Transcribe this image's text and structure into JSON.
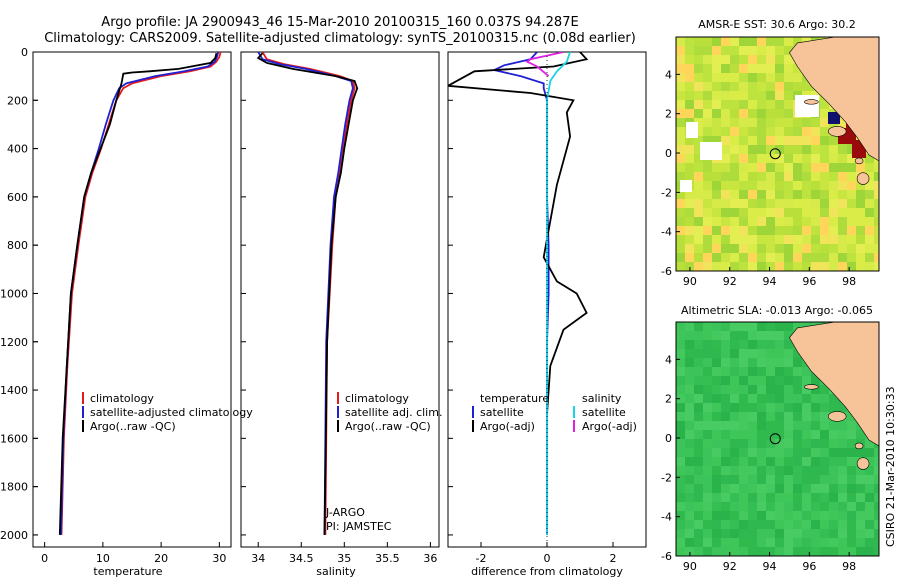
{
  "header": {
    "line1": "Argo profile: JA 2900943_46 15-Mar-2010 20100315_160 0.037S 94.287E",
    "line2": "Climatology: CARS2009. Satellite-adjusted climatology: synTS_20100315.nc (0.08d earlier)"
  },
  "colors": {
    "climatology": "#e41a1c",
    "satellite": "#1f1fd6",
    "argo": "#000000",
    "sal_satellite": "#19d3e6",
    "sal_argo": "#e21fe0",
    "sst_high": "#9b0a0a",
    "land": "#f7c49a"
  },
  "chart_data": [
    {
      "type": "line",
      "name": "temperature",
      "xlabel": "temperature",
      "xticks": [
        "0",
        "10",
        "20",
        "30"
      ],
      "xlim": [
        -2,
        32
      ],
      "ylim": [
        0,
        2050
      ],
      "yticks": [
        "0",
        "200",
        "400",
        "600",
        "800",
        "1000",
        "1200",
        "1400",
        "1600",
        "1800",
        "2000"
      ],
      "legend": [
        "climatology",
        "satellite-adjusted climatology",
        "Argo(..raw -QC)"
      ],
      "series": [
        {
          "name": "climatology",
          "color": "#e41a1c",
          "x": [
            30.2,
            30.0,
            29.5,
            28.5,
            25,
            20,
            15,
            13.5,
            12.3,
            11.0,
            9.7,
            8.2,
            7.0,
            5.8,
            4.7,
            3.9,
            3.3,
            2.9
          ],
          "y": [
            0,
            20,
            40,
            60,
            80,
            100,
            130,
            150,
            200,
            300,
            400,
            500,
            600,
            800,
            1000,
            1300,
            1600,
            2000
          ]
        },
        {
          "name": "satellite-adjusted climatology",
          "color": "#1f1fd6",
          "x": [
            29.8,
            29.6,
            29.2,
            28,
            24,
            19,
            14,
            12.8,
            11.8,
            10.5,
            9.3,
            8.0,
            6.8,
            5.6,
            4.5,
            3.8,
            3.2,
            2.8
          ],
          "y": [
            0,
            20,
            40,
            60,
            80,
            100,
            130,
            150,
            200,
            300,
            400,
            500,
            600,
            800,
            1000,
            1300,
            1600,
            2000
          ]
        },
        {
          "name": "Argo(..raw -QC)",
          "color": "#000000",
          "x": [
            29.5,
            29.3,
            28.5,
            23,
            18,
            15,
            13.5,
            13.2,
            12.3,
            11.2,
            9.6,
            8.0,
            6.8,
            5.6,
            4.5,
            3.8,
            3.1,
            2.6
          ],
          "y": [
            5,
            25,
            45,
            70,
            80,
            85,
            90,
            130,
            200,
            300,
            400,
            500,
            600,
            800,
            1000,
            1300,
            1600,
            2000
          ]
        }
      ]
    },
    {
      "type": "line",
      "name": "salinity",
      "xlabel": "salinity",
      "xticks": [
        "34",
        "34.5",
        "35",
        "35.5",
        "36"
      ],
      "xlim": [
        33.8,
        36.1
      ],
      "ylim": [
        0,
        2050
      ],
      "legend": [
        "climatology",
        "satellite adj. clim.",
        "Argo(..raw -QC)"
      ],
      "annotation": [
        "J-ARGO",
        "PI: JAMSTEC"
      ],
      "series": [
        {
          "name": "climatology",
          "color": "#e41a1c",
          "x": [
            34.05,
            34.1,
            34.3,
            34.6,
            34.95,
            35.1,
            35.12,
            35.08,
            35.03,
            34.99,
            34.95,
            34.9,
            34.86,
            34.8,
            34.78
          ],
          "y": [
            0,
            30,
            50,
            70,
            100,
            120,
            150,
            200,
            300,
            400,
            500,
            600,
            800,
            1200,
            2000
          ]
        },
        {
          "name": "satellite adj. clim.",
          "color": "#1f1fd6",
          "x": [
            34.0,
            34.05,
            34.25,
            34.55,
            34.9,
            35.08,
            35.1,
            35.06,
            35.01,
            34.97,
            34.93,
            34.88,
            34.84,
            34.79,
            34.77
          ],
          "y": [
            0,
            30,
            50,
            70,
            100,
            120,
            150,
            200,
            300,
            400,
            500,
            600,
            800,
            1200,
            2000
          ]
        },
        {
          "name": "Argo(..raw -QC)",
          "color": "#000000",
          "x": [
            34.05,
            34.0,
            34.1,
            34.4,
            34.9,
            35.12,
            35.15,
            35.1,
            35.05,
            35.0,
            34.96,
            34.9,
            34.85,
            34.8,
            34.77
          ],
          "y": [
            5,
            25,
            45,
            70,
            100,
            120,
            150,
            200,
            300,
            400,
            500,
            600,
            800,
            1200,
            2000
          ]
        }
      ]
    },
    {
      "type": "line",
      "name": "difference",
      "xlabel": "difference from climatology",
      "xticks": [
        "-2",
        "0",
        "2"
      ],
      "xlim": [
        -3.0,
        3.0
      ],
      "ylim": [
        0,
        2050
      ],
      "legend_left": [
        "temperature",
        "satellite",
        "Argo(-adj)"
      ],
      "legend_right": [
        "salinity",
        "satellite",
        "Argo(-adj)"
      ],
      "series": [
        {
          "name": "temperature satellite",
          "color": "#1f1fd6",
          "x": [
            -0.3,
            -0.5,
            -1.3,
            -1.6,
            -0.8,
            -0.1,
            -0.1,
            0.0,
            0.0,
            0.0,
            0.05,
            0.05,
            0.0,
            0.0,
            0.0
          ],
          "y": [
            0,
            30,
            55,
            75,
            100,
            130,
            150,
            200,
            400,
            600,
            800,
            1000,
            1200,
            1600,
            2000
          ]
        },
        {
          "name": "temperature Argo(-adj)",
          "color": "#000000",
          "x": [
            1.0,
            1.2,
            0.2,
            -2.2,
            -3.0,
            -0.5,
            0.8,
            0.6,
            0.7,
            0.5,
            0.3,
            0.1,
            -0.1,
            0.3,
            0.9,
            1.2,
            0.5,
            0.1,
            0.0
          ],
          "y": [
            0,
            30,
            60,
            80,
            140,
            170,
            200,
            250,
            350,
            450,
            550,
            700,
            850,
            950,
            1000,
            1080,
            1150,
            1300,
            1500
          ]
        },
        {
          "name": "salinity satellite",
          "color": "#19d3e6",
          "x": [
            0.7,
            0.6,
            0.3,
            0.1,
            0.0,
            0.0,
            0.0,
            0.0,
            0.0
          ],
          "y": [
            0,
            40,
            80,
            120,
            200,
            400,
            800,
            1400,
            2000
          ]
        },
        {
          "name": "salinity Argo(-adj)",
          "color": "#e21fe0",
          "x": [
            0.5,
            -0.5,
            -0.6,
            -0.3,
            0.05
          ],
          "y": [
            0,
            30,
            40,
            60,
            100
          ]
        }
      ]
    },
    {
      "type": "heatmap",
      "name": "sst",
      "title": "AMSR-E SST: 30.6  Argo: 30.2",
      "xticks": [
        "90",
        "92",
        "94",
        "96",
        "98"
      ],
      "yticks": [
        "4",
        "2",
        "0",
        "-2",
        "-4",
        "-6"
      ],
      "xlim": [
        89.3,
        99.5
      ],
      "ylim": [
        -6,
        5.9
      ],
      "marker": [
        94.287,
        -0.037
      ]
    },
    {
      "type": "heatmap",
      "name": "sla",
      "title": "Altimetric SLA: -0.013  Argo: -0.065",
      "xticks": [
        "90",
        "92",
        "94",
        "96",
        "98"
      ],
      "yticks": [
        "4",
        "2",
        "0",
        "-2",
        "-4",
        "-6"
      ],
      "xlim": [
        89.3,
        99.5
      ],
      "ylim": [
        -6,
        5.9
      ],
      "marker": [
        94.287,
        -0.037
      ]
    }
  ],
  "footer": {
    "stamp": "CSIRO 21-Mar-2010 10:30:33"
  }
}
